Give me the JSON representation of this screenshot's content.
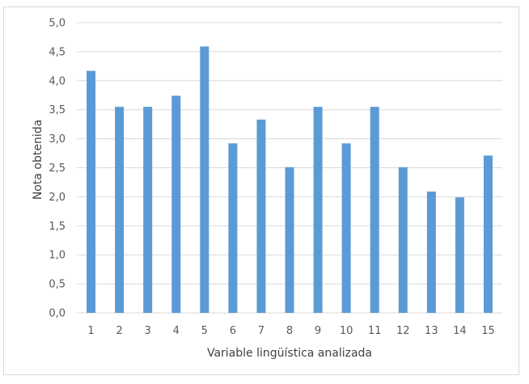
{
  "chart_data": {
    "type": "bar",
    "title": "",
    "xlabel": "Variable lingüística analizada",
    "ylabel": "Nota obtenida",
    "categories": [
      "1",
      "2",
      "3",
      "4",
      "5",
      "6",
      "7",
      "8",
      "9",
      "10",
      "11",
      "12",
      "13",
      "14",
      "15"
    ],
    "values": [
      4.17,
      3.55,
      3.55,
      3.74,
      4.59,
      2.92,
      3.33,
      2.51,
      3.55,
      2.92,
      3.55,
      2.51,
      2.09,
      1.99,
      2.71
    ],
    "ylim": [
      0,
      5
    ],
    "yticks": [
      "0,0",
      "0,5",
      "1,0",
      "1,5",
      "2,0",
      "2,5",
      "3,0",
      "3,5",
      "4,0",
      "4,5",
      "5,0"
    ],
    "grid": true,
    "legend": "none",
    "bar_color": "#5b9bd5",
    "grid_color": "#d9d9d9"
  }
}
